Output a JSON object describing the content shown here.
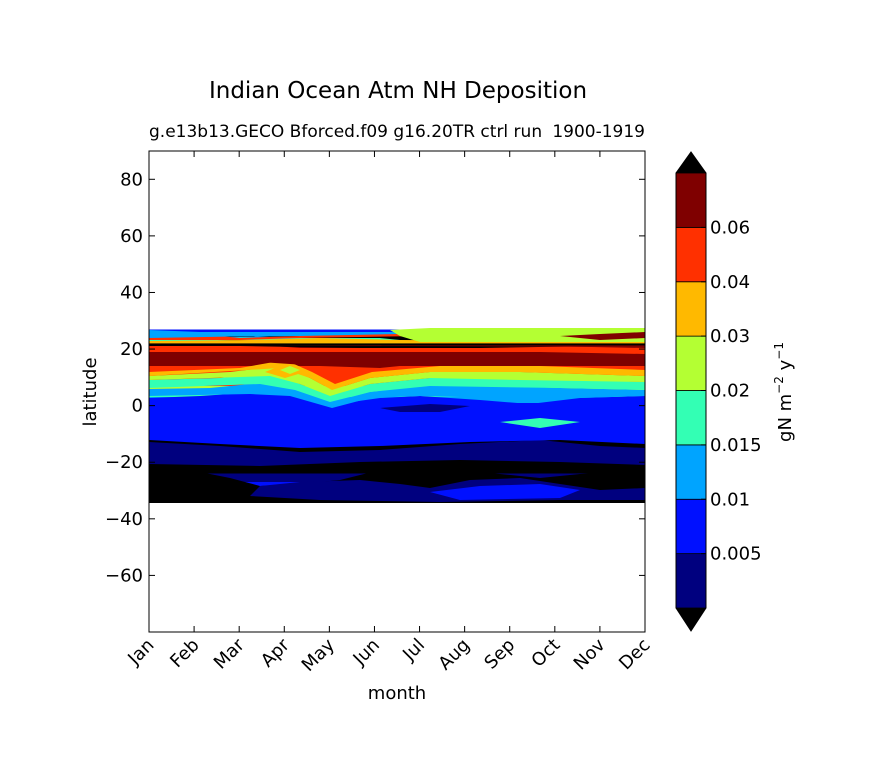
{
  "chart_data": {
    "type": "heatmap",
    "title": "Indian Ocean Atm NH Deposition",
    "subtitle_left": "g.e13b13.GECO Bforced.f09 g16.20TR ctrl run",
    "subtitle_right": "1900-1919",
    "xlabel": "month",
    "ylabel": "latitude",
    "x_categories": [
      "Jan",
      "Feb",
      "Mar",
      "Apr",
      "May",
      "Jun",
      "Jul",
      "Aug",
      "Sep",
      "Oct",
      "Nov",
      "Dec"
    ],
    "ylim": [
      -80,
      90
    ],
    "yticks": [
      80,
      60,
      40,
      20,
      0,
      -20,
      -40,
      -60
    ],
    "ytick_labels": [
      "80",
      "60",
      "40",
      "20",
      "0",
      "−20",
      "−40",
      "−60"
    ],
    "data_lat_range": [
      -34,
      27
    ],
    "colorbar": {
      "label_base": "gN m",
      "label_exp1": "−2",
      "label_mid": " y",
      "label_exp2": "−1",
      "tick_labels": [
        "0.005",
        "0.01",
        "0.015",
        "0.02",
        "0.03",
        "0.04",
        "0.06"
      ],
      "colors": [
        "#00007f",
        "#0010ff",
        "#00a4ff",
        "#33ffb4",
        "#b4ff33",
        "#ffb900",
        "#ff3000",
        "#7f0000"
      ],
      "under_color": "#000000",
      "over_color": "#000000"
    },
    "bands": [
      {
        "lat": [
          -34,
          -29
        ],
        "level": 0
      },
      {
        "lat": [
          -29,
          -27
        ],
        "level": 1
      },
      {
        "lat": [
          -27,
          -24
        ],
        "level": 0
      },
      {
        "lat": [
          -24,
          -12
        ],
        "level": 0
      },
      {
        "lat": [
          -12,
          -8
        ],
        "level": 1
      },
      {
        "lat": [
          -8,
          -5
        ],
        "level": 1
      },
      {
        "lat": [
          -5,
          -2
        ],
        "level": 1
      },
      {
        "lat": [
          -2,
          1
        ],
        "level": 1
      },
      {
        "lat": [
          1,
          3
        ],
        "level": 2
      },
      {
        "lat": [
          3,
          5
        ],
        "level": 3
      },
      {
        "lat": [
          5,
          7
        ],
        "level": 4
      },
      {
        "lat": [
          7,
          14
        ],
        "level": 6
      },
      {
        "lat": [
          14,
          20
        ],
        "level": 7
      },
      {
        "lat": [
          20,
          22
        ],
        "level": 7
      },
      {
        "lat": [
          22,
          24
        ],
        "level": 3
      },
      {
        "lat": [
          24,
          26
        ],
        "level": 2
      },
      {
        "lat": [
          26,
          27
        ],
        "level": 1
      }
    ]
  }
}
